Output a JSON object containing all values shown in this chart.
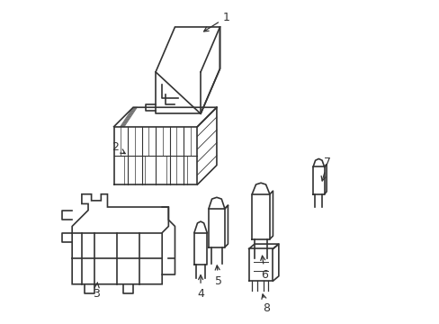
{
  "background_color": "#ffffff",
  "line_color": "#333333",
  "line_width": 1.2,
  "label_fontsize": 9
}
